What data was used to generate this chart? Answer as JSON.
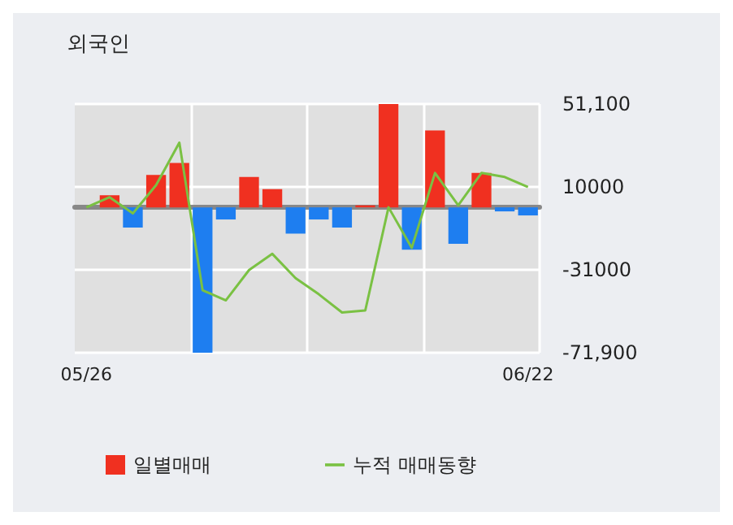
{
  "chart_data": {
    "type": "bar",
    "title": "외국인",
    "categories": [
      "05/26",
      null,
      null,
      null,
      null,
      null,
      null,
      null,
      null,
      null,
      null,
      null,
      null,
      null,
      null,
      null,
      null,
      null,
      null,
      "06/22"
    ],
    "series": [
      {
        "name": "일별매매",
        "colors": [
          "#f03020",
          "#f03020",
          "#1e7ef0",
          "#f03020",
          "#f03020",
          "#1e7ef0",
          "#1e7ef0",
          "#f03020",
          "#f03020",
          "#1e7ef0",
          "#1e7ef0",
          "#1e7ef0",
          "#f03020",
          "#f03020",
          "#1e7ef0",
          "#f03020",
          "#1e7ef0",
          "#f03020",
          "#1e7ef0",
          "#1e7ef0"
        ],
        "values": [
          0,
          6000,
          -10000,
          16000,
          22000,
          -71900,
          -6000,
          15000,
          9000,
          -13000,
          -6000,
          -10000,
          1000,
          51100,
          -21000,
          38000,
          -18000,
          17000,
          -2000,
          -4000
        ]
      },
      {
        "name": "누적 매매동향",
        "type": "line",
        "color": "#7ac143",
        "values": [
          0,
          5000,
          -3000,
          11000,
          32000,
          -41000,
          -46000,
          -31000,
          -23000,
          -35000,
          -43000,
          -52000,
          -51000,
          0,
          -20000,
          17000,
          1000,
          17000,
          15000,
          10000
        ]
      }
    ],
    "ylim": [
      -71900,
      51100
    ],
    "yticks": [
      {
        "value": 51100,
        "label": "51,100"
      },
      10000,
      -31000,
      {
        "value": -71900,
        "label": "-71,900"
      }
    ],
    "grid": true,
    "legend": "bottom",
    "marker": "none",
    "line_style": "solid"
  }
}
